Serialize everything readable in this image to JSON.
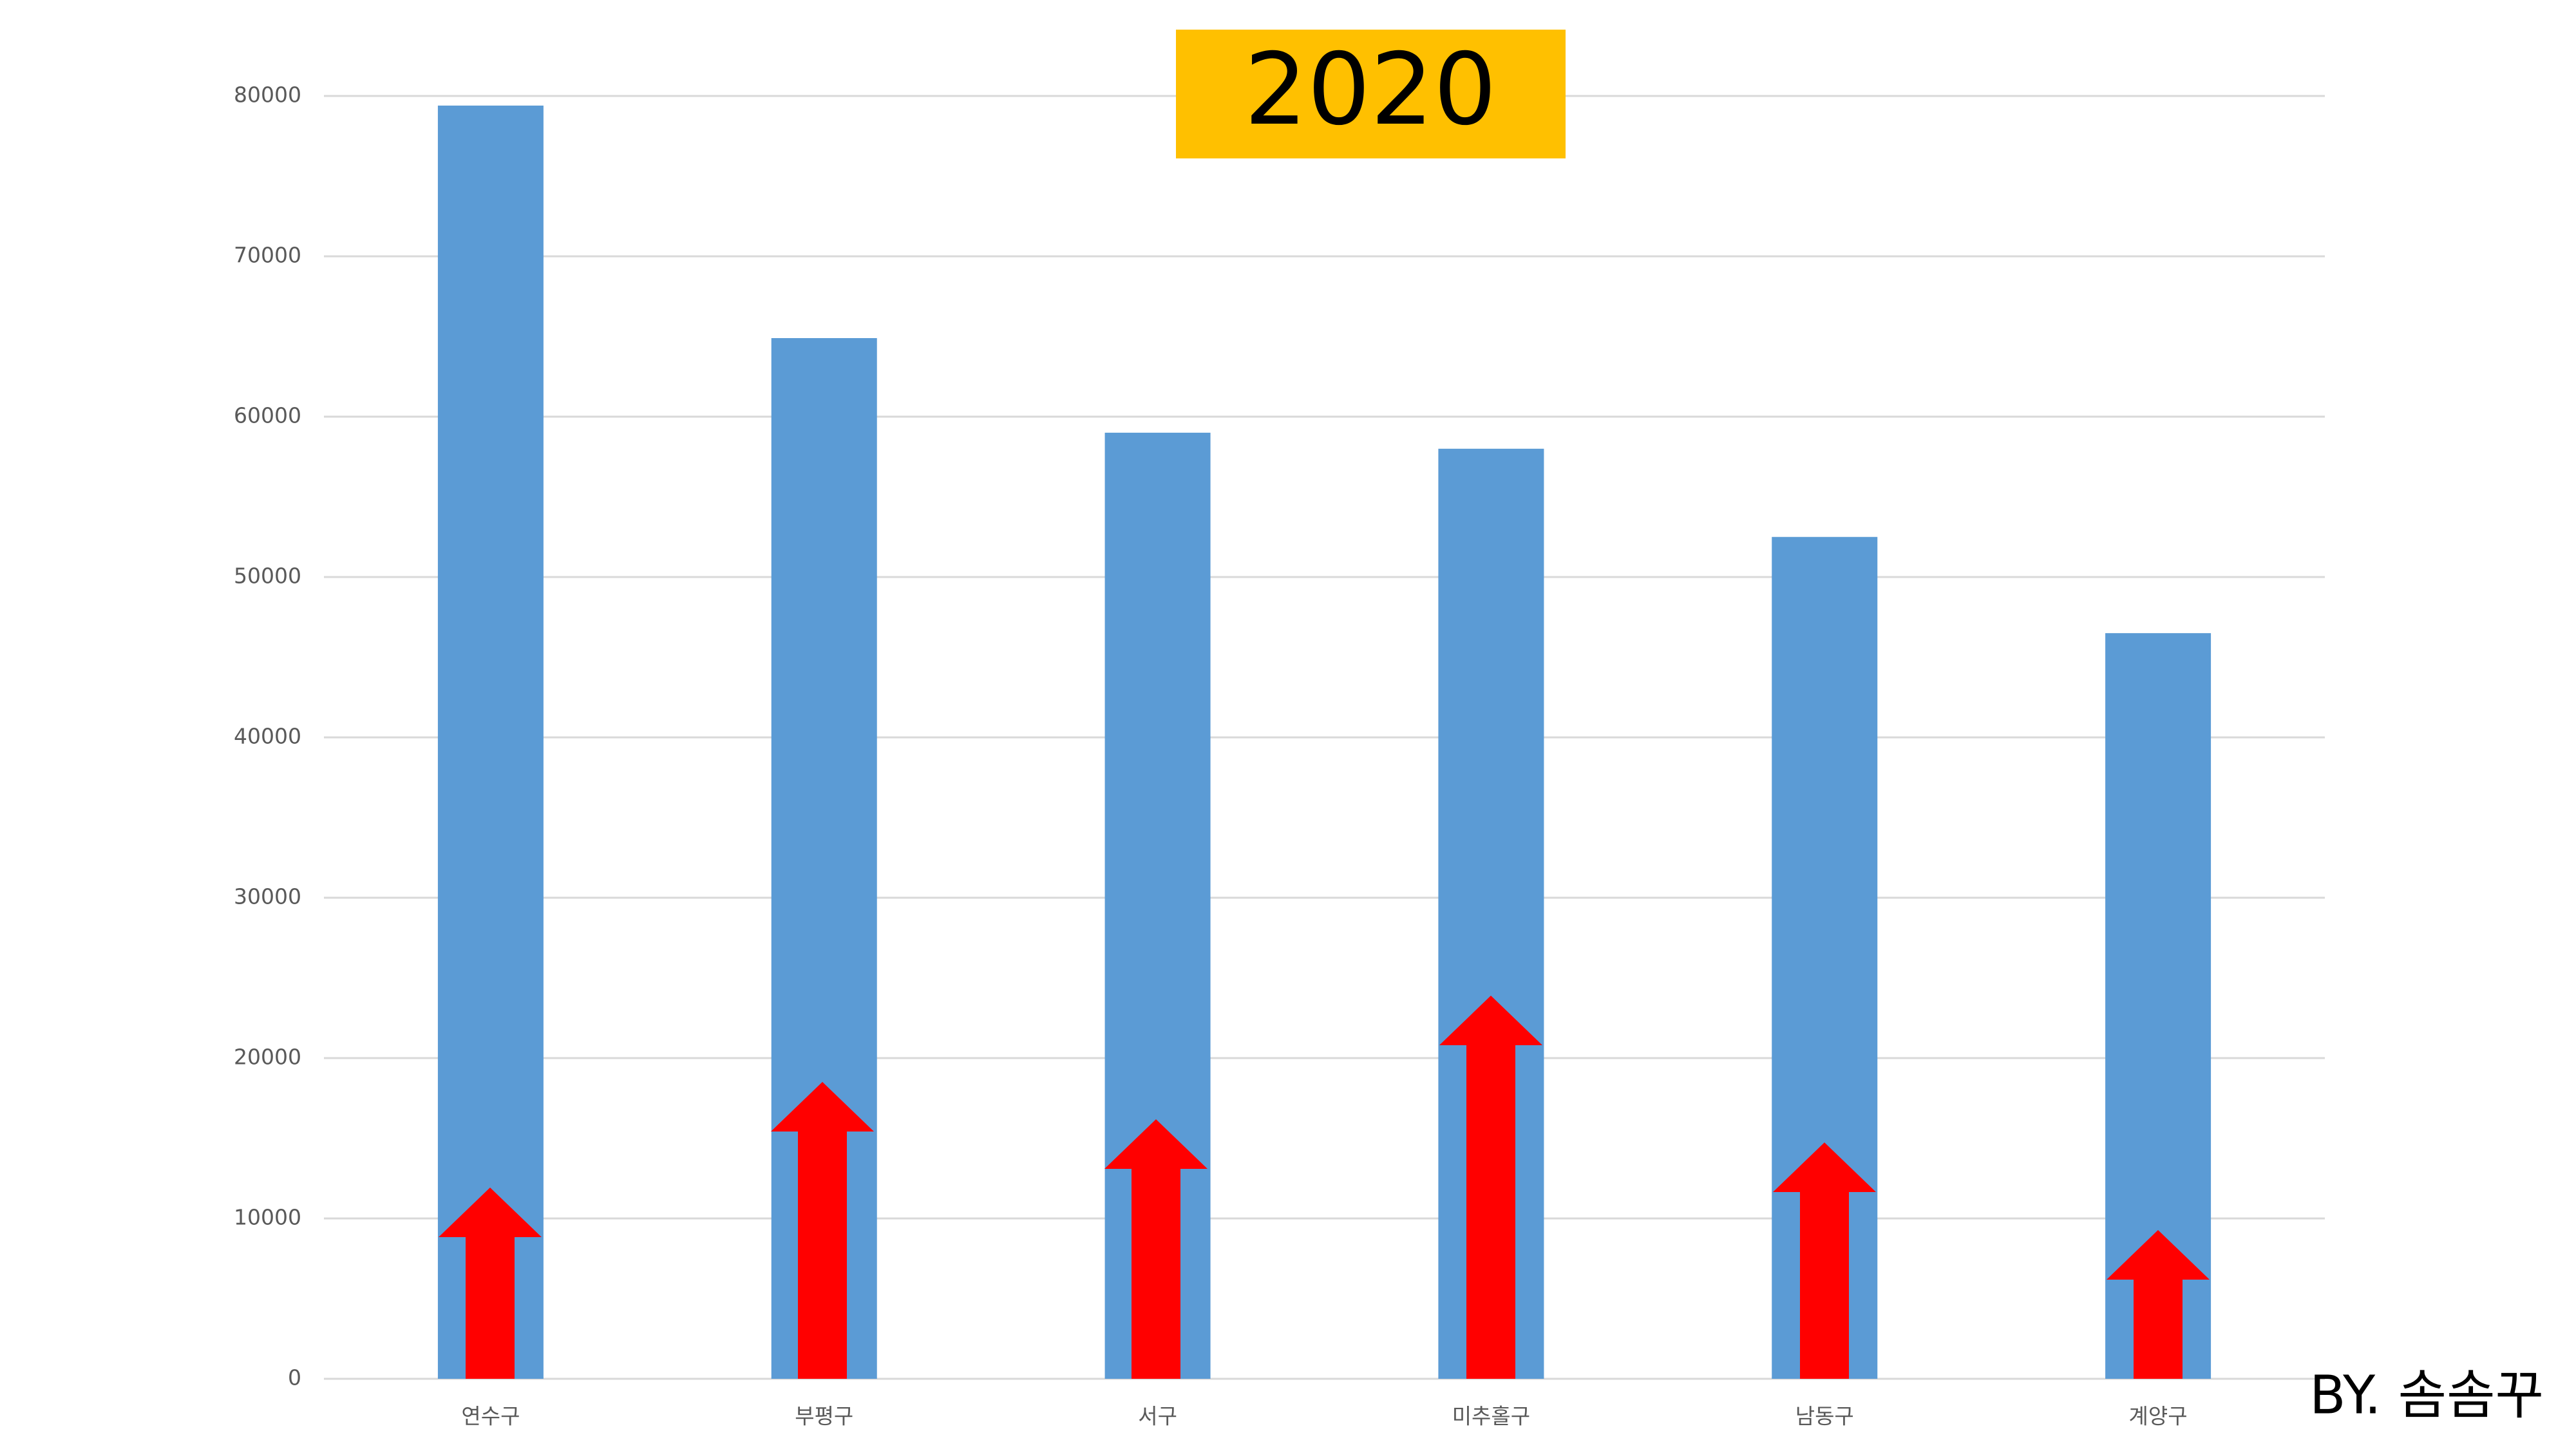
{
  "chart_data": {
    "type": "bar",
    "title": "2020",
    "credit": "BY. 솜솜꾸",
    "categories": [
      "연수구",
      "부평구",
      "서구",
      "미추홀구",
      "남동구",
      "계양구"
    ],
    "values": [
      79400,
      64900,
      59000,
      58000,
      52500,
      46500
    ],
    "color": "#5b9bd5",
    "ylim": [
      0,
      80000
    ],
    "yticks": [
      0,
      10000,
      20000,
      30000,
      40000,
      50000,
      60000,
      70000,
      80000
    ],
    "grid": true
  }
}
